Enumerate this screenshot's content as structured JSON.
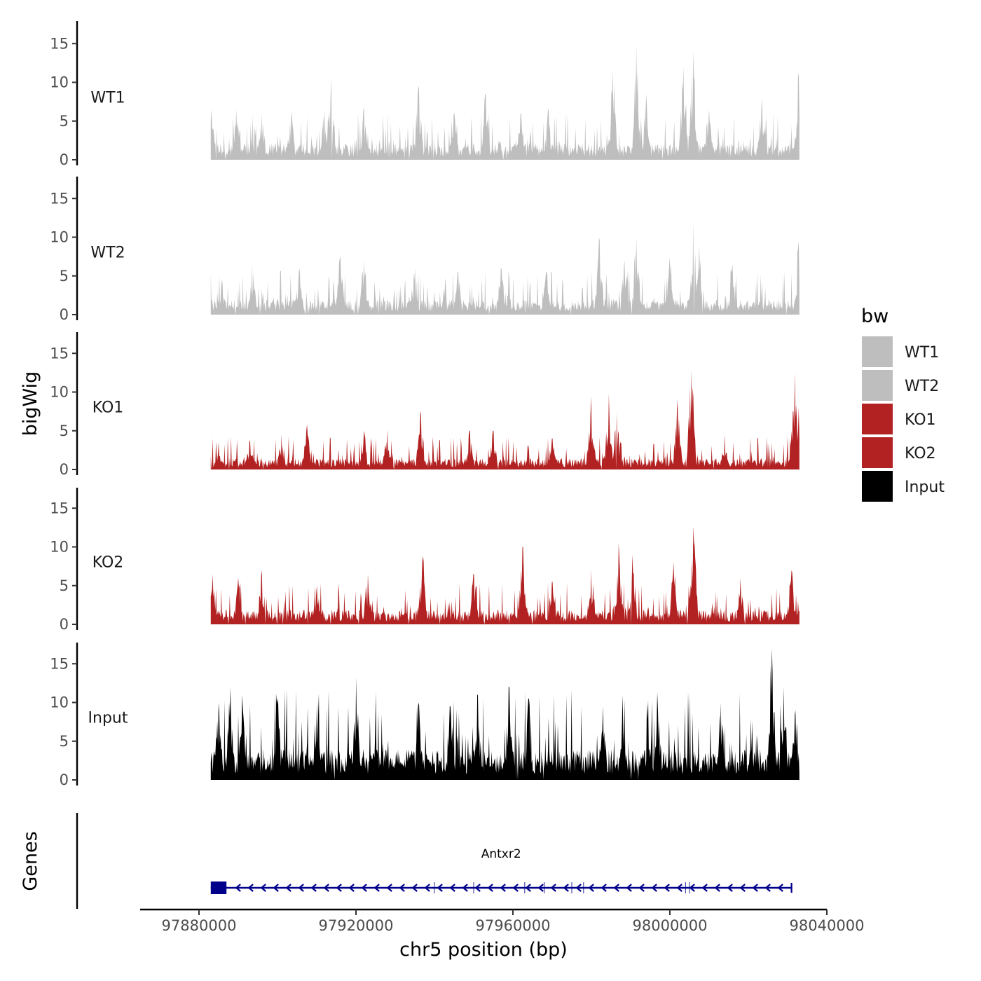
{
  "chart_data": {
    "type": "area",
    "title": "",
    "ylabel": "bigWig",
    "xlabel": "chr5 position (bp)",
    "genes_track_label": "Genes",
    "xlim": [
      97865000,
      98040000
    ],
    "data_range": [
      97883000,
      98033000
    ],
    "x_ticks": [
      97880000,
      97920000,
      97960000,
      98000000,
      98040000
    ],
    "x_tick_labels": [
      "97880000",
      "97920000",
      "97960000",
      "98000000",
      "98040000"
    ],
    "ylim": [
      0,
      18
    ],
    "y_ticks": [
      0,
      5,
      10,
      15
    ],
    "y_tick_labels": [
      "0",
      "5",
      "10",
      "15"
    ],
    "legend": {
      "title": "bw",
      "position": "right",
      "entries": [
        {
          "label": "WT1",
          "color": "#bebebe"
        },
        {
          "label": "WT2",
          "color": "#bebebe"
        },
        {
          "label": "KO1",
          "color": "#b22222"
        },
        {
          "label": "KO2",
          "color": "#b22222"
        },
        {
          "label": "Input",
          "color": "#000000"
        }
      ]
    },
    "series": [
      {
        "name": "WT1",
        "color": "#bebebe",
        "base": 1.6,
        "peaks": [
          {
            "x": 97883100,
            "y": 6.5
          },
          {
            "x": 97889500,
            "y": 6.5
          },
          {
            "x": 97896000,
            "y": 6.0
          },
          {
            "x": 97903500,
            "y": 6.2
          },
          {
            "x": 97912000,
            "y": 6.5
          },
          {
            "x": 97913700,
            "y": 10.5
          },
          {
            "x": 97922000,
            "y": 6.8
          },
          {
            "x": 97936000,
            "y": 9.5
          },
          {
            "x": 97945000,
            "y": 6.0
          },
          {
            "x": 97953000,
            "y": 8.5
          },
          {
            "x": 97962000,
            "y": 6.0
          },
          {
            "x": 97969000,
            "y": 6.5
          },
          {
            "x": 97985500,
            "y": 11.5
          },
          {
            "x": 97991500,
            "y": 14.8
          },
          {
            "x": 97994000,
            "y": 8.5
          },
          {
            "x": 98003500,
            "y": 12.0
          },
          {
            "x": 98006000,
            "y": 14.0
          },
          {
            "x": 98010000,
            "y": 6.5
          },
          {
            "x": 98023500,
            "y": 8.0
          },
          {
            "x": 98032800,
            "y": 11.2
          }
        ]
      },
      {
        "name": "WT2",
        "color": "#bebebe",
        "base": 1.5,
        "peaks": [
          {
            "x": 97883100,
            "y": 2.0
          },
          {
            "x": 97885800,
            "y": 4.5
          },
          {
            "x": 97893500,
            "y": 6.5
          },
          {
            "x": 97905500,
            "y": 6.0
          },
          {
            "x": 97916000,
            "y": 7.5
          },
          {
            "x": 97922000,
            "y": 7.0
          },
          {
            "x": 97935000,
            "y": 6.0
          },
          {
            "x": 97946000,
            "y": 5.5
          },
          {
            "x": 97957000,
            "y": 6.0
          },
          {
            "x": 97968500,
            "y": 5.5
          },
          {
            "x": 97982000,
            "y": 10.0
          },
          {
            "x": 97988500,
            "y": 7.0
          },
          {
            "x": 97991500,
            "y": 10.0
          },
          {
            "x": 98000000,
            "y": 7.5
          },
          {
            "x": 98006000,
            "y": 12.0
          },
          {
            "x": 98007500,
            "y": 9.0
          },
          {
            "x": 98016000,
            "y": 6.5
          },
          {
            "x": 98032800,
            "y": 9.5
          }
        ]
      },
      {
        "name": "KO1",
        "color": "#b22222",
        "base": 1.1,
        "peaks": [
          {
            "x": 97885000,
            "y": 3.5
          },
          {
            "x": 97893000,
            "y": 3.8
          },
          {
            "x": 97901000,
            "y": 4.5
          },
          {
            "x": 97907500,
            "y": 5.8
          },
          {
            "x": 97922000,
            "y": 5.0
          },
          {
            "x": 97928000,
            "y": 5.2
          },
          {
            "x": 97936500,
            "y": 7.5
          },
          {
            "x": 97949000,
            "y": 5.0
          },
          {
            "x": 97955000,
            "y": 5.0
          },
          {
            "x": 97970000,
            "y": 4.0
          },
          {
            "x": 97980000,
            "y": 9.5
          },
          {
            "x": 97984500,
            "y": 9.8
          },
          {
            "x": 97986500,
            "y": 7.5
          },
          {
            "x": 98002000,
            "y": 9.0
          },
          {
            "x": 98005500,
            "y": 12.8
          },
          {
            "x": 98014000,
            "y": 4.5
          },
          {
            "x": 98031800,
            "y": 12.5
          },
          {
            "x": 98032800,
            "y": 8.0
          }
        ]
      },
      {
        "name": "KO2",
        "color": "#b22222",
        "base": 1.4,
        "peaks": [
          {
            "x": 97883500,
            "y": 6.5
          },
          {
            "x": 97890000,
            "y": 6.0
          },
          {
            "x": 97896000,
            "y": 7.0
          },
          {
            "x": 97910000,
            "y": 5.0
          },
          {
            "x": 97923000,
            "y": 6.5
          },
          {
            "x": 97937000,
            "y": 8.8
          },
          {
            "x": 97950000,
            "y": 6.5
          },
          {
            "x": 97962500,
            "y": 10.0
          },
          {
            "x": 97970000,
            "y": 5.5
          },
          {
            "x": 97980000,
            "y": 7.0
          },
          {
            "x": 97987000,
            "y": 10.5
          },
          {
            "x": 97990500,
            "y": 9.0
          },
          {
            "x": 98001000,
            "y": 8.0
          },
          {
            "x": 98006000,
            "y": 12.6
          },
          {
            "x": 98018000,
            "y": 6.0
          },
          {
            "x": 98031000,
            "y": 7.0
          }
        ]
      },
      {
        "name": "Input",
        "color": "#000000",
        "base": 3.0,
        "peaks": [
          {
            "x": 97885000,
            "y": 10.0
          },
          {
            "x": 97888000,
            "y": 12.0
          },
          {
            "x": 97891000,
            "y": 11.0
          },
          {
            "x": 97900000,
            "y": 10.5
          },
          {
            "x": 97910000,
            "y": 10.0
          },
          {
            "x": 97920000,
            "y": 13.3
          },
          {
            "x": 97936000,
            "y": 10.0
          },
          {
            "x": 97944000,
            "y": 9.5
          },
          {
            "x": 97951000,
            "y": 11.0
          },
          {
            "x": 97959000,
            "y": 12.0
          },
          {
            "x": 97964000,
            "y": 10.5
          },
          {
            "x": 97983000,
            "y": 9.5
          },
          {
            "x": 97988000,
            "y": 11.0
          },
          {
            "x": 97997000,
            "y": 9.0
          },
          {
            "x": 98013000,
            "y": 10.0
          },
          {
            "x": 98026000,
            "y": 17.0
          },
          {
            "x": 98029000,
            "y": 12.0
          },
          {
            "x": 98032000,
            "y": 9.0
          }
        ]
      }
    ],
    "gene": {
      "name": "Antxr2",
      "strand": "-",
      "start": 97883000,
      "end": 98031000,
      "color": "#00008b",
      "utr_block": [
        97883000,
        97887000
      ],
      "exons": [
        97940000,
        97950000,
        97963000,
        97968000,
        97975000,
        97978000,
        98004000,
        98005000
      ]
    }
  }
}
